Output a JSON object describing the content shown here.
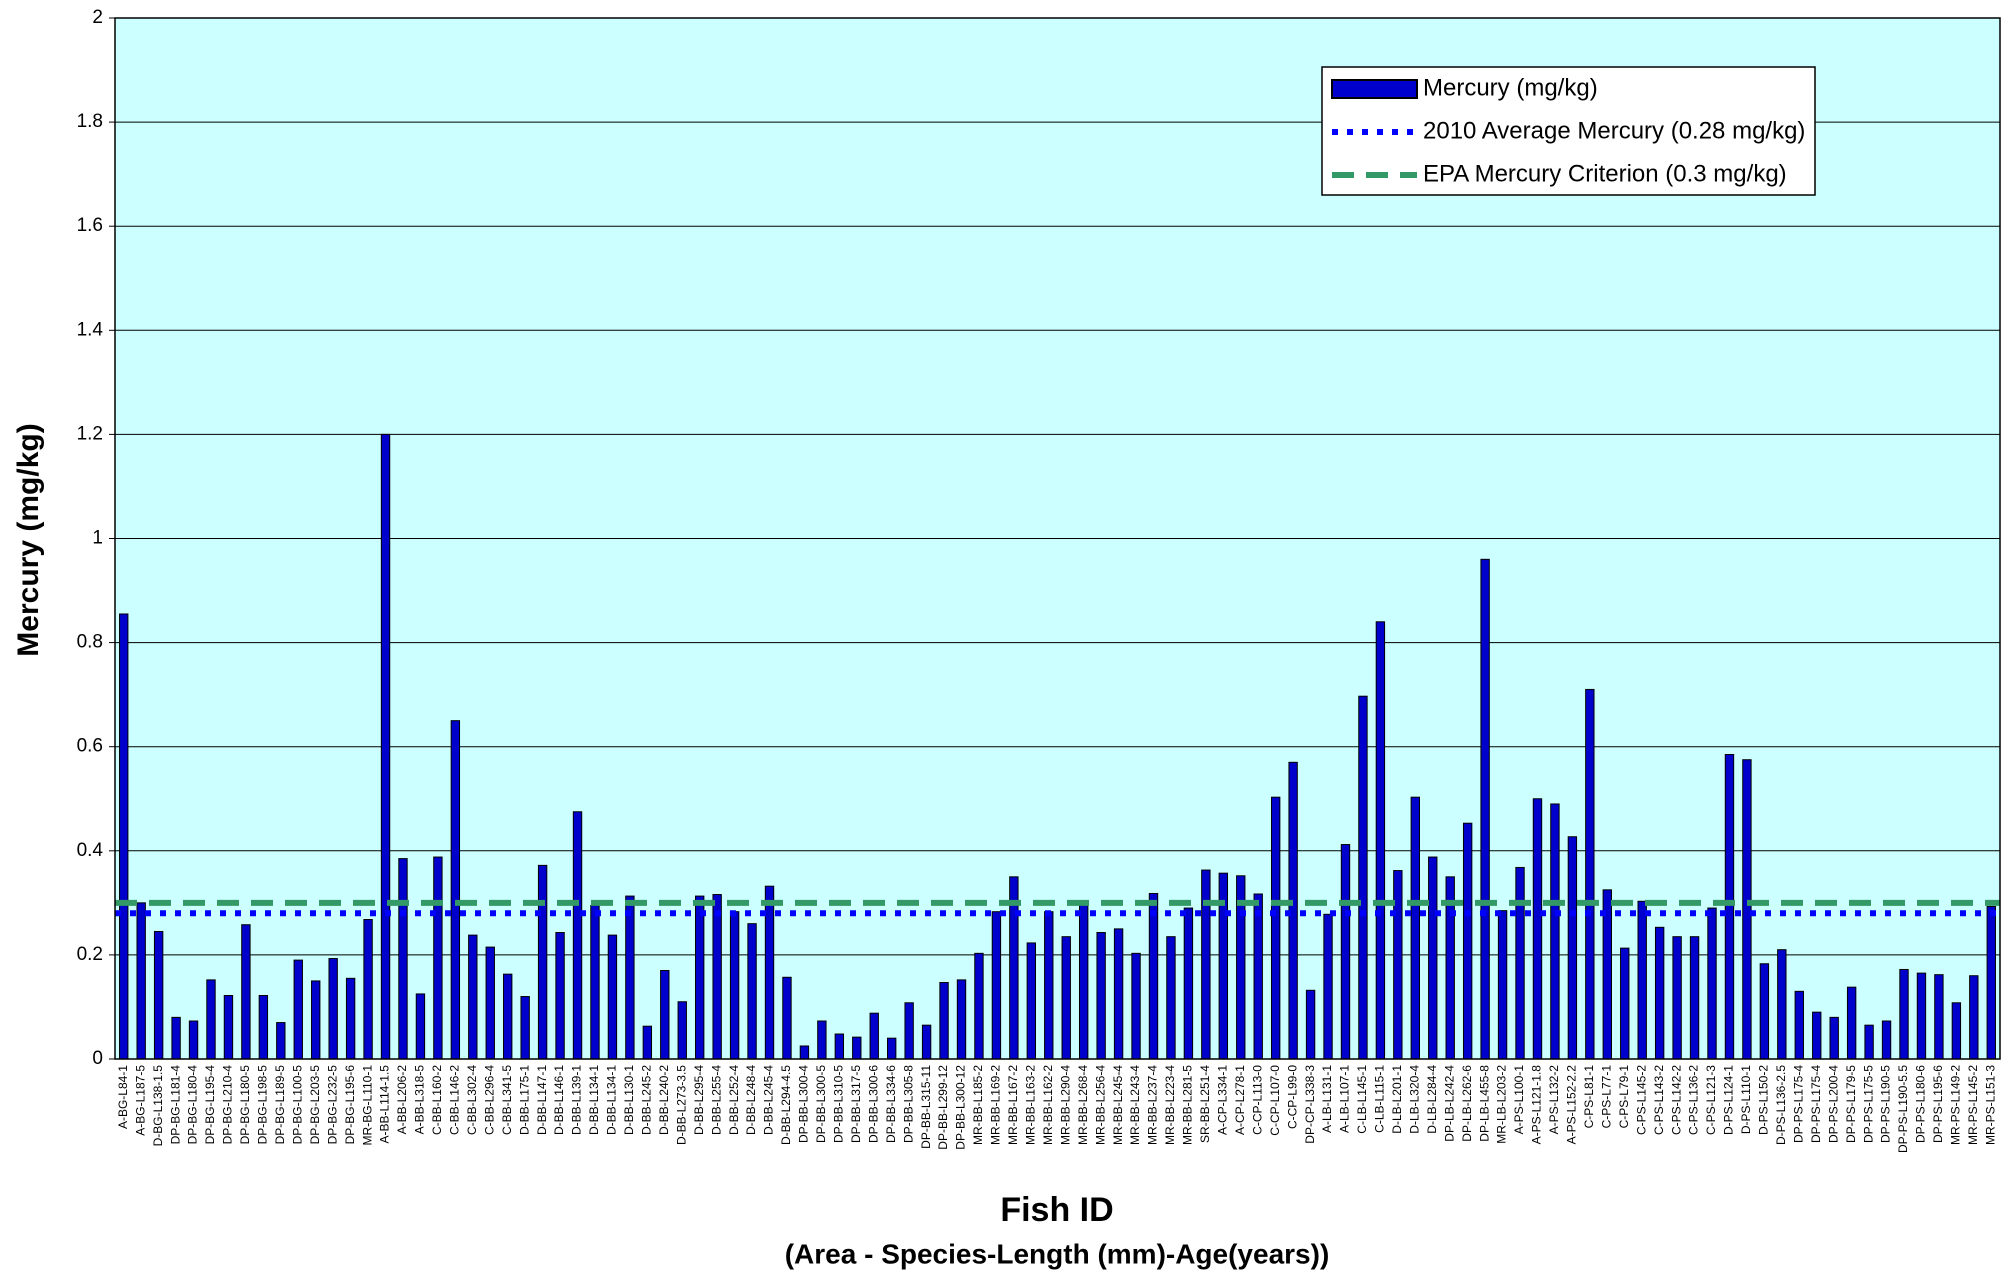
{
  "chart_data": {
    "type": "bar",
    "y_label": "Mercury (mg/kg)",
    "x_label": "Fish ID",
    "x_sublabel": "(Area - Species-Length (mm)-Age(years))",
    "categories": [
      "A-BG-L84-1",
      "A-BG-L187-5",
      "D-BG-L138-1.5",
      "DP-BG-L181-4",
      "DP-BG-L180-4",
      "DP-BG-L195-4",
      "DP-BG-L210-4",
      "DP-BG-L180-5",
      "DP-BG-L198-5",
      "DP-BG-L189-5",
      "DP-BG-L100-5",
      "DP-BG-L203-5",
      "DP-BG-L232-5",
      "DP-BG-L195-6",
      "MR-BG-L110-1",
      "A-BB-L114-1.5",
      "A-BB-L206-2",
      "A-BB-L318-5",
      "C-BB-L160-2",
      "C-BB-L146-2",
      "C-BB-L302-4",
      "C-BB-L296-4",
      "C-BB-L341-5",
      "D-BB-L175-1",
      "D-BB-L147-1",
      "D-BB-L146-1",
      "D-BB-L139-1",
      "D-BB-L134-1",
      "D-BB-L134-1",
      "D-BB-L130-1",
      "D-BB-L245-2",
      "D-BB-L240-2",
      "D-BB-L273-3.5",
      "D-BB-L295-4",
      "D-BB-L255-4",
      "D-BB-L252-4",
      "D-BB-L248-4",
      "D-BB-L245-4",
      "D-BB-L294-4.5",
      "DP-BB-L300-4",
      "DP-BB-L300-5",
      "DP-BB-L310-5",
      "DP-BB-L317-5",
      "DP-BB-L300-6",
      "DP-BB-L334-6",
      "DP-BB-L305-8",
      "DP-BB-L315-11",
      "DP-BB-L299-12",
      "DP-BB-L300-12",
      "MR-BB-L185-2",
      "MR-BB-L169-2",
      "MR-BB-L167-2",
      "MR-BB-L163-2",
      "MR-BB-L162-2",
      "MR-BB-L290-4",
      "MR-BB-L268-4",
      "MR-BB-L256-4",
      "MR-BB-L245-4",
      "MR-BB-L243-4",
      "MR-BB-L237-4",
      "MR-BB-L223-4",
      "MR-BB-L281-5",
      "SR-BB-L251-4",
      "A-CP-L334-1",
      "A-CP-L278-1",
      "C-CP-L113-0",
      "C-CP-L107-0",
      "C-CP-L99-0",
      "DP-CP-L338-3",
      "A-LB-L131-1",
      "A-LB-L107-1",
      "C-LB-L145-1",
      "C-LB-L115-1",
      "D-LB-L201-1",
      "D-LB-L320-4",
      "D-LB-L284-4",
      "DP-LB-L242-4",
      "DP-LB-L262-6",
      "DP-LB-L455-8",
      "MR-LB-L203-2",
      "A-PS-L100-1",
      "A-PS-L121-1.8",
      "A-PS-L132-2",
      "A-PS-L152-2.2",
      "C-PS-L81-1",
      "C-PS-L77-1",
      "C-PS-L79-1",
      "C-PS-L145-2",
      "C-PS-L143-2",
      "C-PS-L142-2",
      "C-PS-L136-2",
      "C-PS-L121-3",
      "D-PS-L124-1",
      "D-PS-L110-1",
      "D-PS-L150-2",
      "D-PS-L136-2.5",
      "DP-PS-L175-4",
      "DP-PS-L175-4",
      "DP-PS-L200-4",
      "DP-PS-L179-5",
      "DP-PS-L175-5",
      "DP-PS-L190-5",
      "DP-PS-L190-5.5",
      "DP-PS-L180-6",
      "DP-PS-L195-6",
      "MR-PS-L149-2",
      "MR-PS-L145-2",
      "MR-PS-L151-3"
    ],
    "series": [
      {
        "name": "Mercury (mg/kg)",
        "color": "#0000cc",
        "values": [
          0.855,
          0.3,
          0.245,
          0.08,
          0.073,
          0.152,
          0.122,
          0.258,
          0.122,
          0.07,
          0.19,
          0.15,
          0.193,
          0.155,
          0.268,
          1.2,
          0.385,
          0.125,
          0.388,
          0.65,
          0.238,
          0.215,
          0.163,
          0.12,
          0.372,
          0.243,
          0.475,
          0.295,
          0.238,
          0.313,
          0.063,
          0.17,
          0.11,
          0.313,
          0.316,
          0.283,
          0.26,
          0.332,
          0.157,
          0.025,
          0.073,
          0.048,
          0.042,
          0.088,
          0.04,
          0.108,
          0.065,
          0.147,
          0.152,
          0.203,
          0.283,
          0.35,
          0.223,
          0.283,
          0.235,
          0.297,
          0.243,
          0.25,
          0.203,
          0.318,
          0.235,
          0.29,
          0.363,
          0.357,
          0.352,
          0.317,
          0.503,
          0.57,
          0.132,
          0.278,
          0.412,
          0.697,
          0.84,
          0.362,
          0.503,
          0.388,
          0.35,
          0.453,
          0.96,
          0.285,
          0.368,
          0.5,
          0.49,
          0.427,
          0.71,
          0.325,
          0.213,
          0.303,
          0.253,
          0.235,
          0.235,
          0.29,
          0.585,
          0.575,
          0.183,
          0.21,
          0.13,
          0.09,
          0.08,
          0.138,
          0.065,
          0.073,
          0.172,
          0.165,
          0.162,
          0.108,
          0.16,
          0.293
        ]
      }
    ],
    "reference_lines": [
      {
        "name": "2010 Average Mercury (0.28 mg/kg)",
        "value": 0.28,
        "color": "#0000ff",
        "style": "dotted"
      },
      {
        "name": "EPA Mercury Criterion (0.3 mg/kg)",
        "value": 0.3,
        "color": "#339966",
        "style": "dashed"
      }
    ],
    "ylim": [
      0,
      2
    ],
    "yticks": [
      0,
      0.2,
      0.4,
      0.6,
      0.8,
      1,
      1.2,
      1.4,
      1.6,
      1.8,
      2
    ],
    "grid": true,
    "legend": "upper right",
    "background": "#ccffff"
  }
}
